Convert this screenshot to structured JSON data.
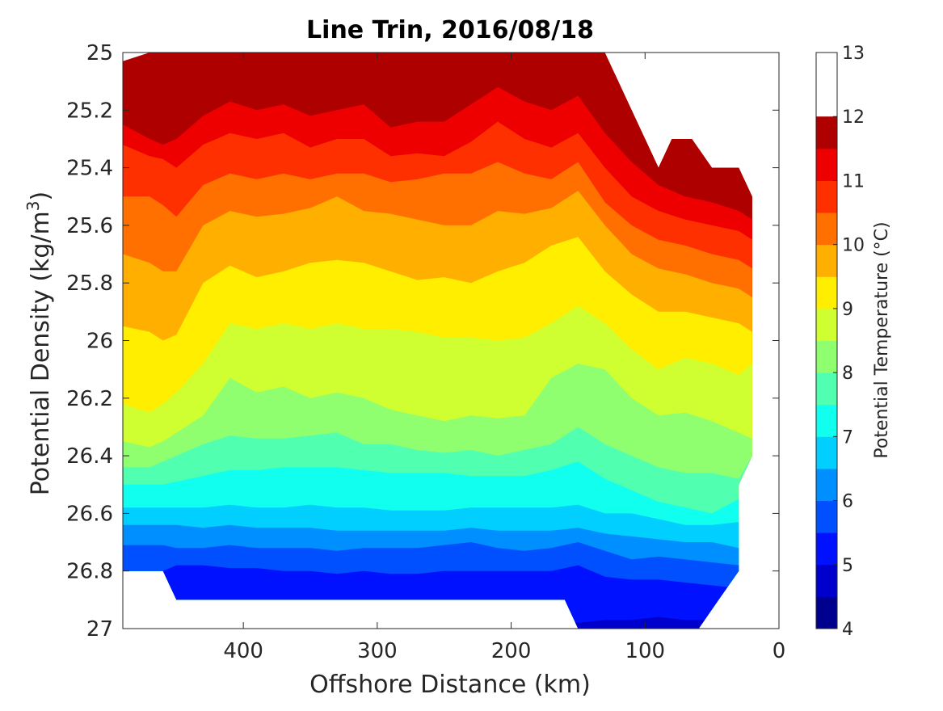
{
  "chart_data": {
    "type": "contourf",
    "title": "Line Trin, 2016/08/18",
    "xlabel": "Offshore Distance (km)",
    "ylabel": "Potential Density (kg/m",
    "ylabel_superscript": "3",
    "ylabel_suffix": ")",
    "x_reversed": true,
    "y_reversed": true,
    "xlim": [
      0,
      490
    ],
    "ylim": [
      25,
      27
    ],
    "xticks": [
      400,
      300,
      200,
      100,
      0
    ],
    "yticks": [
      25,
      25.2,
      25.4,
      25.6,
      25.8,
      26,
      26.2,
      26.4,
      26.6,
      26.8,
      27
    ],
    "ytick_labels": [
      "25",
      "25.2",
      "25.4",
      "25.6",
      "25.8",
      "26",
      "26.2",
      "26.4",
      "26.6",
      "26.8",
      "27"
    ],
    "colorbar": {
      "label": "Potential Temperature (°C)",
      "range": [
        4,
        13
      ],
      "ticks": [
        4,
        5,
        6,
        7,
        8,
        9,
        10,
        11,
        12,
        13
      ],
      "tick_labels": [
        "4",
        "5",
        "6",
        "7",
        "8",
        "9",
        "10",
        "11",
        "12",
        "13"
      ],
      "level_step": 0.5,
      "colors": [
        "#00008f",
        "#0000cc",
        "#0011ff",
        "#0050ff",
        "#008fff",
        "#00cfff",
        "#11ffee",
        "#50ffaf",
        "#8fff70",
        "#cfff30",
        "#ffee00",
        "#ffaf00",
        "#ff7000",
        "#ff3000",
        "#ef0000",
        "#af0000"
      ]
    },
    "x_km": [
      490,
      470,
      460,
      450,
      430,
      410,
      390,
      370,
      350,
      330,
      310,
      290,
      270,
      250,
      230,
      210,
      190,
      170,
      150,
      130,
      110,
      90,
      70,
      50,
      30,
      20
    ],
    "contours": [
      {
        "level": 12.5,
        "density": [
          25.03,
          25.0,
          25.0,
          25.0,
          25.0,
          25.0,
          25.0,
          25.0,
          25.0,
          25.0,
          25.0,
          25.0,
          25.0,
          25.0,
          25.0,
          25.0,
          25.0,
          25.0,
          25.0,
          25.0,
          25.0,
          25.0,
          25.0,
          25.0,
          25.0,
          25.0
        ]
      },
      {
        "level": 12.0,
        "density": [
          25.08,
          25.1,
          25.14,
          25.1,
          25.02,
          25.0,
          25.0,
          25.0,
          25.0,
          25.0,
          25.0,
          25.0,
          25.0,
          25.0,
          25.0,
          25.0,
          25.0,
          25.0,
          25.0,
          25.03,
          25.15,
          25.28,
          25.3,
          25.3,
          25.32,
          25.35
        ]
      },
      {
        "level": 11.5,
        "density": [
          25.16,
          25.21,
          25.25,
          25.22,
          25.12,
          25.08,
          25.12,
          25.09,
          25.12,
          25.08,
          25.1,
          25.16,
          25.12,
          25.14,
          25.06,
          25.0,
          25.07,
          25.1,
          25.05,
          25.14,
          25.24,
          25.36,
          25.4,
          25.41,
          25.45,
          25.5
        ]
      },
      {
        "level": 11.0,
        "density": [
          25.25,
          25.3,
          25.32,
          25.3,
          25.22,
          25.17,
          25.2,
          25.18,
          25.22,
          25.2,
          25.18,
          25.26,
          25.24,
          25.24,
          25.18,
          25.12,
          25.17,
          25.2,
          25.15,
          25.28,
          25.38,
          25.46,
          25.5,
          25.52,
          25.55,
          25.58
        ]
      },
      {
        "level": 10.5,
        "density": [
          25.32,
          25.36,
          25.37,
          25.4,
          25.32,
          25.28,
          25.3,
          25.28,
          25.33,
          25.3,
          25.3,
          25.36,
          25.35,
          25.36,
          25.31,
          25.24,
          25.3,
          25.33,
          25.28,
          25.4,
          25.5,
          25.55,
          25.58,
          25.6,
          25.62,
          25.65
        ]
      },
      {
        "level": 10.0,
        "density": [
          25.5,
          25.5,
          25.53,
          25.57,
          25.46,
          25.42,
          25.44,
          25.42,
          25.44,
          25.42,
          25.42,
          25.45,
          25.44,
          25.42,
          25.42,
          25.38,
          25.42,
          25.44,
          25.38,
          25.52,
          25.6,
          25.65,
          25.67,
          25.7,
          25.72,
          25.75
        ]
      },
      {
        "level": 9.5,
        "density": [
          25.7,
          25.73,
          25.76,
          25.76,
          25.6,
          25.55,
          25.57,
          25.56,
          25.54,
          25.5,
          25.55,
          25.56,
          25.58,
          25.6,
          25.6,
          25.55,
          25.56,
          25.54,
          25.48,
          25.6,
          25.7,
          25.75,
          25.77,
          25.8,
          25.82,
          25.85
        ]
      },
      {
        "level": 9.0,
        "density": [
          25.95,
          25.97,
          26.0,
          25.98,
          25.8,
          25.74,
          25.78,
          25.76,
          25.73,
          25.72,
          25.73,
          25.76,
          25.79,
          25.78,
          25.8,
          25.76,
          25.73,
          25.67,
          25.64,
          25.76,
          25.84,
          25.9,
          25.9,
          25.92,
          25.94,
          25.97
        ]
      },
      {
        "level": 8.5,
        "density": [
          26.22,
          26.25,
          26.22,
          26.18,
          26.08,
          25.94,
          25.96,
          25.94,
          25.96,
          25.94,
          25.96,
          25.96,
          25.97,
          25.99,
          25.99,
          26.0,
          25.99,
          25.94,
          25.88,
          25.94,
          26.03,
          26.1,
          26.06,
          26.08,
          26.12,
          26.08
        ]
      },
      {
        "level": 8.0,
        "density": [
          26.35,
          26.37,
          26.35,
          26.32,
          26.26,
          26.13,
          26.18,
          26.16,
          26.2,
          26.18,
          26.2,
          26.24,
          26.26,
          26.28,
          26.26,
          26.27,
          26.26,
          26.13,
          26.08,
          26.1,
          26.2,
          26.26,
          26.25,
          26.28,
          26.32,
          26.34
        ]
      },
      {
        "level": 7.5,
        "density": [
          26.44,
          26.44,
          26.42,
          26.4,
          26.36,
          26.33,
          26.34,
          26.34,
          26.33,
          26.32,
          26.36,
          26.36,
          26.38,
          26.39,
          26.38,
          26.4,
          26.38,
          26.36,
          26.3,
          26.36,
          26.4,
          26.44,
          26.46,
          26.46,
          26.48,
          26.4
        ]
      },
      {
        "level": 7.0,
        "density": [
          26.5,
          26.5,
          26.5,
          26.49,
          26.47,
          26.45,
          26.45,
          26.44,
          26.44,
          26.44,
          26.45,
          26.46,
          26.46,
          26.46,
          26.47,
          26.47,
          26.47,
          26.45,
          26.42,
          26.48,
          26.52,
          26.56,
          26.58,
          26.6,
          26.55,
          26.4
        ]
      },
      {
        "level": 6.5,
        "density": [
          26.58,
          26.58,
          26.58,
          26.58,
          26.58,
          26.57,
          26.58,
          26.58,
          26.57,
          26.58,
          26.58,
          26.59,
          26.59,
          26.59,
          26.58,
          26.58,
          26.58,
          26.58,
          26.57,
          26.6,
          26.6,
          26.62,
          26.64,
          26.64,
          26.63,
          26.63
        ]
      },
      {
        "level": 6.0,
        "density": [
          26.64,
          26.64,
          26.64,
          26.64,
          26.65,
          26.64,
          26.65,
          26.65,
          26.65,
          26.66,
          26.66,
          26.66,
          26.66,
          26.66,
          26.65,
          26.66,
          26.66,
          26.66,
          26.65,
          26.67,
          26.68,
          26.69,
          26.7,
          26.7,
          26.72,
          26.72
        ]
      },
      {
        "level": 5.5,
        "density": [
          26.71,
          26.71,
          26.71,
          26.72,
          26.72,
          26.71,
          26.72,
          26.72,
          26.72,
          26.73,
          26.72,
          26.72,
          26.72,
          26.71,
          26.7,
          26.72,
          26.73,
          26.72,
          26.7,
          26.73,
          26.76,
          26.75,
          26.76,
          26.77,
          26.78,
          26.78
        ]
      },
      {
        "level": 5.0,
        "density": [
          26.8,
          26.8,
          26.8,
          26.78,
          26.78,
          26.79,
          26.79,
          26.8,
          26.8,
          26.81,
          26.8,
          26.81,
          26.81,
          26.8,
          26.8,
          26.8,
          26.8,
          26.8,
          26.78,
          26.82,
          26.83,
          26.83,
          26.84,
          26.85,
          26.86,
          26.87
        ]
      },
      {
        "level": 4.5,
        "density": [
          26.95,
          26.95,
          26.95,
          26.95,
          26.95,
          26.95,
          26.95,
          26.95,
          26.95,
          26.95,
          26.95,
          26.95,
          26.95,
          26.95,
          26.95,
          26.95,
          26.95,
          26.95,
          26.98,
          26.97,
          26.97,
          26.96,
          26.97,
          26.97,
          26.97,
          26.97
        ]
      }
    ],
    "data_boundary": {
      "top": [
        [
          490,
          25.0
        ],
        [
          130,
          25.0
        ],
        [
          110,
          25.2
        ],
        [
          90,
          25.4
        ],
        [
          80,
          25.3
        ],
        [
          65,
          25.3
        ],
        [
          50,
          25.4
        ],
        [
          30,
          25.4
        ],
        [
          20,
          25.5
        ]
      ],
      "bottom": [
        [
          20,
          26.4
        ],
        [
          30,
          26.5
        ],
        [
          30,
          26.8
        ],
        [
          45,
          26.9
        ],
        [
          60,
          27.0
        ],
        [
          150,
          27.0
        ],
        [
          160,
          26.9
        ],
        [
          450,
          26.9
        ],
        [
          460,
          26.8
        ],
        [
          490,
          26.8
        ]
      ]
    }
  }
}
